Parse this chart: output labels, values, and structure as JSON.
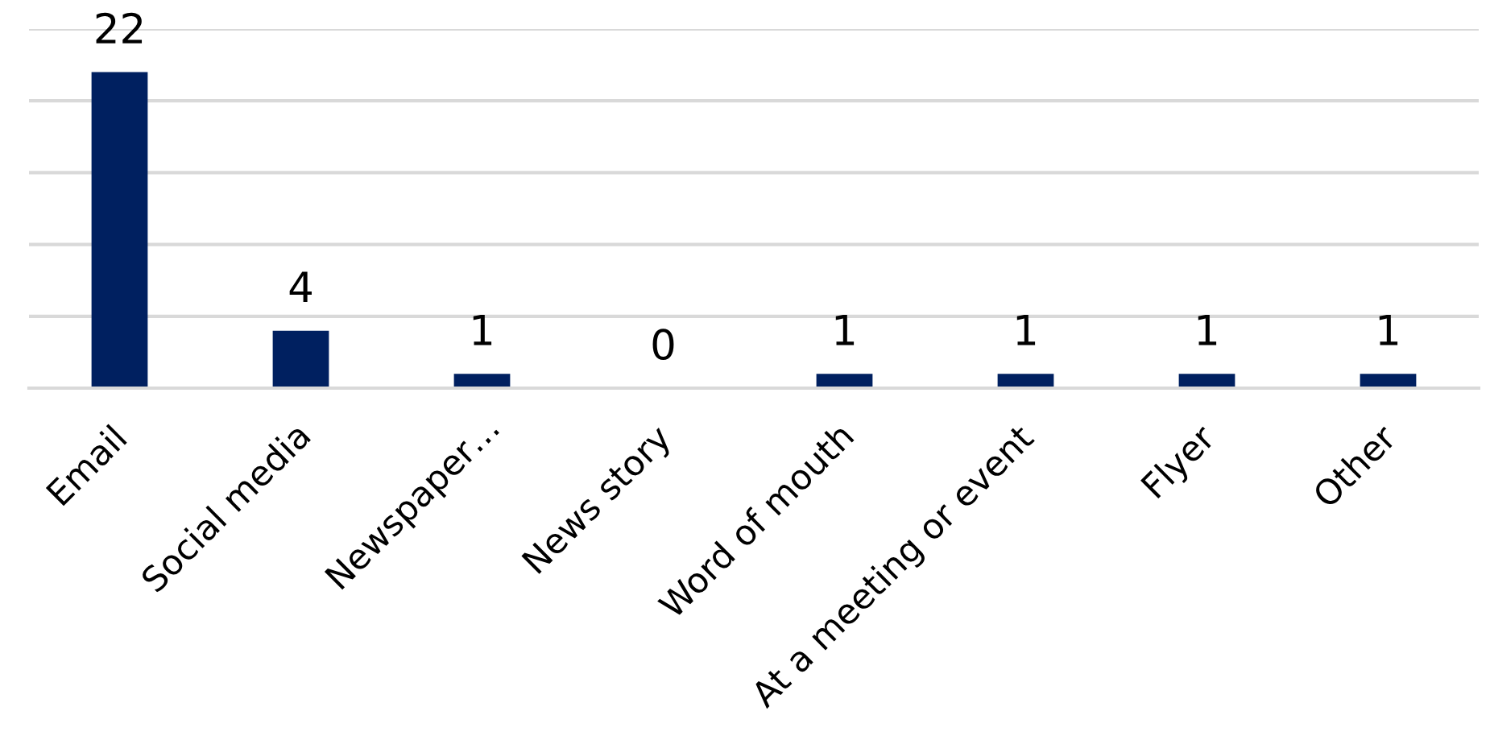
{
  "chart_data": {
    "type": "bar",
    "categories": [
      "Email",
      "Social media",
      "Newspaper…",
      "News story",
      "Word of mouth",
      "At a meeting or event",
      "Flyer",
      "Other"
    ],
    "values": [
      22,
      4,
      1,
      0,
      1,
      1,
      1,
      1
    ],
    "color": "#002060",
    "ylim": [
      0,
      25
    ],
    "yticks": [
      {
        "value": 0,
        "label": null
      },
      {
        "value": 5,
        "label": null
      },
      {
        "value": 10,
        "label": null
      },
      {
        "value": 15,
        "label": null
      },
      {
        "value": 20,
        "label": null
      },
      {
        "value": 25,
        "label": null
      }
    ],
    "grid": "y",
    "tick_labels": "x",
    "data_labels": true
  }
}
